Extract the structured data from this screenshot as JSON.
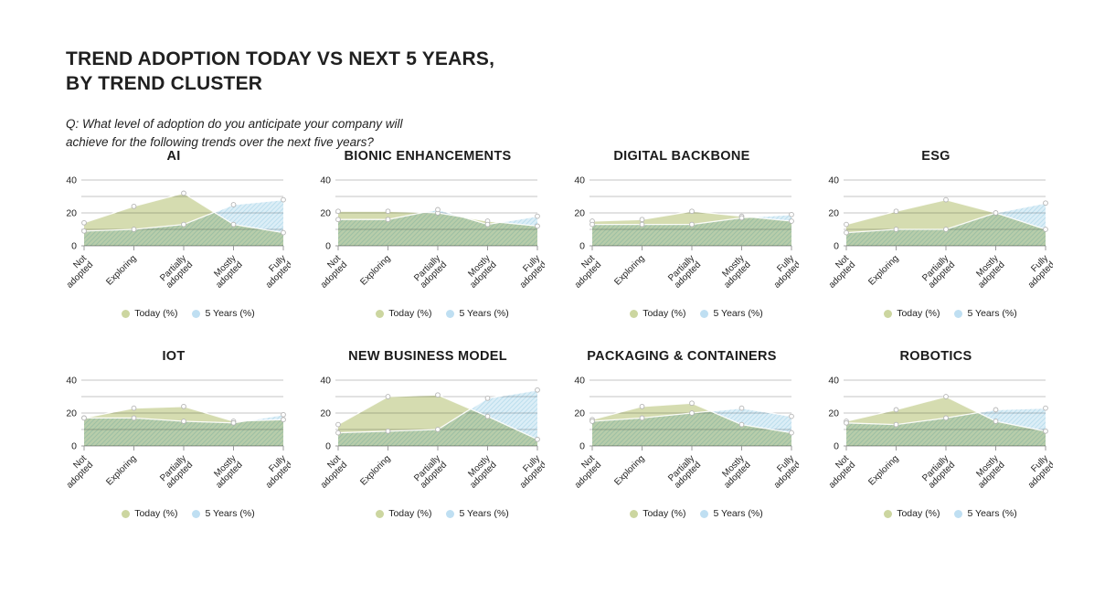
{
  "header": {
    "title_line1": "TREND ADOPTION TODAY VS NEXT 5 YEARS,",
    "title_line2": "BY TREND CLUSTER",
    "subtitle_line1": "Q: What level of adoption do you anticipate your company will",
    "subtitle_line2": "achieve for the following trends over the next five years?"
  },
  "colors": {
    "today_fill": "#d5dcb0",
    "today_legend_dot": "#ccd6a0",
    "five_years_fill": "#dceef7",
    "five_years_hatch": "#bcdeee",
    "five_years_legend_dot": "#bfdff2",
    "series_line": "#ffffff",
    "marker_fill": "#ffffff",
    "marker_stroke": "#b5b5b5",
    "grid": "#c6c6c6",
    "axis": "#9c9c9c",
    "tick_text": "#222222"
  },
  "chart_data": [
    {
      "type": "area",
      "title": "AI",
      "categories": [
        "Not adopted",
        "Exploring",
        "Partially adopted",
        "Mostly adopted",
        "Fully adopted"
      ],
      "series": [
        {
          "name": "Today (%)",
          "values": [
            14,
            24,
            32,
            13,
            8
          ]
        },
        {
          "name": "5 Years (%)",
          "values": [
            9,
            10,
            13,
            25,
            28
          ]
        }
      ],
      "ylim": [
        0,
        40
      ],
      "yticks": [
        0,
        20,
        40
      ],
      "grid": true,
      "legend_position": "bottom"
    },
    {
      "type": "area",
      "title": "BIONIC ENHANCEMENTS",
      "categories": [
        "Not adopted",
        "Exploring",
        "Partially adopted",
        "Mostly adopted",
        "Fully adopted"
      ],
      "series": [
        {
          "name": "Today (%)",
          "values": [
            21,
            21,
            20,
            15,
            12
          ]
        },
        {
          "name": "5 Years (%)",
          "values": [
            16,
            16,
            22,
            13,
            18
          ]
        }
      ],
      "ylim": [
        0,
        40
      ],
      "yticks": [
        0,
        20,
        40
      ],
      "grid": true,
      "legend_position": "bottom"
    },
    {
      "type": "area",
      "title": "DIGITAL BACKBONE",
      "categories": [
        "Not adopted",
        "Exploring",
        "Partially adopted",
        "Mostly adopted",
        "Fully adopted"
      ],
      "series": [
        {
          "name": "Today (%)",
          "values": [
            15,
            16,
            21,
            18,
            15
          ]
        },
        {
          "name": "5 Years (%)",
          "values": [
            13,
            13,
            13,
            17,
            19
          ]
        }
      ],
      "ylim": [
        0,
        40
      ],
      "yticks": [
        0,
        20,
        40
      ],
      "grid": true,
      "legend_position": "bottom"
    },
    {
      "type": "area",
      "title": "ESG",
      "categories": [
        "Not adopted",
        "Exploring",
        "Partially adopted",
        "Mostly adopted",
        "Fully adopted"
      ],
      "series": [
        {
          "name": "Today (%)",
          "values": [
            13,
            21,
            28,
            20,
            10
          ]
        },
        {
          "name": "5 Years (%)",
          "values": [
            8,
            10,
            10,
            20,
            26
          ]
        }
      ],
      "ylim": [
        0,
        40
      ],
      "yticks": [
        0,
        20,
        40
      ],
      "grid": true,
      "legend_position": "bottom"
    },
    {
      "type": "area",
      "title": "IOT",
      "categories": [
        "Not adopted",
        "Exploring",
        "Partially adopted",
        "Mostly adopted",
        "Fully adopted"
      ],
      "series": [
        {
          "name": "Today (%)",
          "values": [
            17,
            23,
            24,
            15,
            16
          ]
        },
        {
          "name": "5 Years (%)",
          "values": [
            17,
            17,
            15,
            14,
            19
          ]
        }
      ],
      "ylim": [
        0,
        40
      ],
      "yticks": [
        0,
        20,
        40
      ],
      "grid": true,
      "legend_position": "bottom"
    },
    {
      "type": "area",
      "title": "NEW BUSINESS MODEL",
      "categories": [
        "Not adopted",
        "Exploring",
        "Partially adopted",
        "Mostly adopted",
        "Fully adopted"
      ],
      "series": [
        {
          "name": "Today (%)",
          "values": [
            13,
            30,
            31,
            18,
            4
          ]
        },
        {
          "name": "5 Years (%)",
          "values": [
            8,
            9,
            10,
            29,
            34
          ]
        }
      ],
      "ylim": [
        0,
        40
      ],
      "yticks": [
        0,
        20,
        40
      ],
      "grid": true,
      "legend_position": "bottom"
    },
    {
      "type": "area",
      "title": "PACKAGING & CONTAINERS",
      "categories": [
        "Not adopted",
        "Exploring",
        "Partially adopted",
        "Mostly adopted",
        "Fully adopted"
      ],
      "series": [
        {
          "name": "Today (%)",
          "values": [
            16,
            24,
            26,
            13,
            8
          ]
        },
        {
          "name": "5 Years (%)",
          "values": [
            15,
            17,
            20,
            23,
            18
          ]
        }
      ],
      "ylim": [
        0,
        40
      ],
      "yticks": [
        0,
        20,
        40
      ],
      "grid": true,
      "legend_position": "bottom"
    },
    {
      "type": "area",
      "title": "ROBOTICS",
      "categories": [
        "Not adopted",
        "Exploring",
        "Partially adopted",
        "Mostly adopted",
        "Fully adopted"
      ],
      "series": [
        {
          "name": "Today (%)",
          "values": [
            15,
            22,
            30,
            15,
            9
          ]
        },
        {
          "name": "5 Years (%)",
          "values": [
            14,
            13,
            17,
            22,
            23
          ]
        }
      ],
      "ylim": [
        0,
        40
      ],
      "yticks": [
        0,
        20,
        40
      ],
      "grid": true,
      "legend_position": "bottom"
    }
  ]
}
